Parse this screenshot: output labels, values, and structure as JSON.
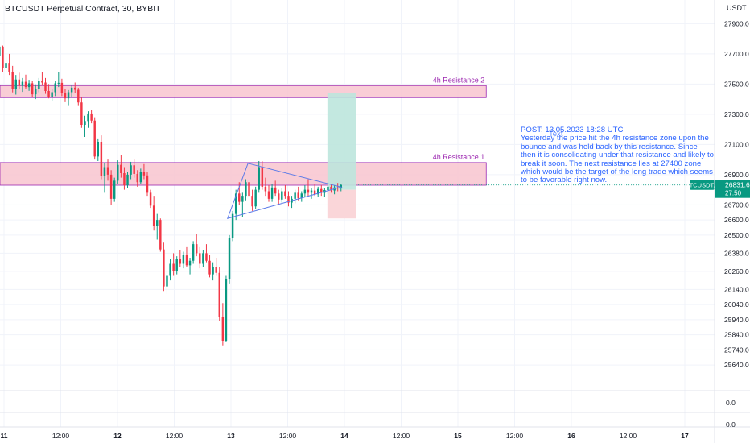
{
  "header": {
    "title": "BTCUSDT Perpetual Contract, 30, BYBIT",
    "currency": "USDT"
  },
  "chart_data": {
    "type": "candlestick",
    "title": "BTCUSDT Perpetual Contract, 30, BYBIT",
    "yunit": "USDT",
    "ylim": [
      25550,
      27950
    ],
    "y_ticks": [
      27900,
      27700,
      27500,
      27300,
      27100,
      26900,
      26700,
      26600,
      26500,
      26380,
      26260,
      26140,
      26040,
      25940,
      25840,
      25740,
      25640
    ],
    "y_tick_labels": [
      "27900.0",
      "27700.0",
      "27500.0",
      "27300.0",
      "27100.0",
      "26900.0",
      "26700.0",
      "26600.0",
      "26500.0",
      "26380.0",
      "26260.0",
      "26140.0",
      "26040.0",
      "25940.0",
      "25840.0",
      "25740.0",
      "25640.0"
    ],
    "x_ticks": [
      {
        "label": "11",
        "bold": true,
        "x": 0
      },
      {
        "label": "12:00",
        "bold": false,
        "x": 0.5
      },
      {
        "label": "12",
        "bold": true,
        "x": 1
      },
      {
        "label": "12:00",
        "bold": false,
        "x": 1.5
      },
      {
        "label": "13",
        "bold": true,
        "x": 2
      },
      {
        "label": "12:00",
        "bold": false,
        "x": 2.5
      },
      {
        "label": "14",
        "bold": true,
        "x": 3
      },
      {
        "label": "12:00",
        "bold": false,
        "x": 3.5
      },
      {
        "label": "15",
        "bold": true,
        "x": 4
      },
      {
        "label": "12:00",
        "bold": false,
        "x": 4.5
      },
      {
        "label": "16",
        "bold": true,
        "x": 5
      },
      {
        "label": "12:00",
        "bold": false,
        "x": 5.5
      },
      {
        "label": "17",
        "bold": true,
        "x": 6
      }
    ],
    "bull_color": "#089981",
    "bear_color": "#f23645",
    "last_price": {
      "value": 26831.6,
      "label": "26831.6",
      "symbol": "BTCUSDT.P",
      "countdown": "27:50"
    },
    "resistance_zones": [
      {
        "label": "4h Resistance 2",
        "low": 27410,
        "high": 27490,
        "x_end": 4.25,
        "color": "#f8c4cf",
        "border": "#9c27b0"
      },
      {
        "label": "4h Resistance 1",
        "low": 26830,
        "high": 26980,
        "x_end": 4.25,
        "color": "#f8c4cf",
        "border": "#9c27b0"
      }
    ],
    "triangle": {
      "points": [
        [
          2.15,
          26975
        ],
        [
          2.97,
          26818
        ],
        [
          1.97,
          26610
        ]
      ],
      "color": "#5b7ae8"
    },
    "long_position": {
      "x_start": 2.85,
      "x_end": 3.1,
      "entry": 26800,
      "target": 27440,
      "stop": 26610,
      "profit_color": "#bde6dd",
      "loss_color": "#fad1d5"
    },
    "lower_pane": {
      "ticks": [
        "0.0",
        "0.0"
      ]
    },
    "candles_ohlc": [
      [
        27685,
        27765,
        27660,
        27748
      ],
      [
        27748,
        27755,
        27580,
        27605
      ],
      [
        27605,
        27680,
        27575,
        27640
      ],
      [
        27640,
        27700,
        27560,
        27578
      ],
      [
        27578,
        27620,
        27445,
        27468
      ],
      [
        27468,
        27560,
        27430,
        27530
      ],
      [
        27530,
        27575,
        27470,
        27488
      ],
      [
        27488,
        27540,
        27448,
        27515
      ],
      [
        27515,
        27562,
        27470,
        27480
      ],
      [
        27480,
        27528,
        27455,
        27505
      ],
      [
        27505,
        27520,
        27412,
        27432
      ],
      [
        27432,
        27498,
        27400,
        27470
      ],
      [
        27470,
        27540,
        27446,
        27520
      ],
      [
        27520,
        27580,
        27490,
        27510
      ],
      [
        27510,
        27540,
        27435,
        27454
      ],
      [
        27454,
        27500,
        27405,
        27415
      ],
      [
        27415,
        27470,
        27390,
        27446
      ],
      [
        27446,
        27520,
        27420,
        27505
      ],
      [
        27505,
        27580,
        27480,
        27508
      ],
      [
        27508,
        27535,
        27420,
        27440
      ],
      [
        27440,
        27468,
        27380,
        27405
      ],
      [
        27405,
        27460,
        27360,
        27446
      ],
      [
        27446,
        27490,
        27410,
        27476
      ],
      [
        27476,
        27510,
        27440,
        27462
      ],
      [
        27462,
        27475,
        27360,
        27378
      ],
      [
        27378,
        27410,
        27210,
        27230
      ],
      [
        27230,
        27290,
        27150,
        27255
      ],
      [
        27255,
        27320,
        27210,
        27305
      ],
      [
        27305,
        27330,
        27240,
        27258
      ],
      [
        27258,
        27280,
        27000,
        27020
      ],
      [
        27020,
        27140,
        26990,
        27118
      ],
      [
        27118,
        27160,
        26870,
        26890
      ],
      [
        26890,
        26975,
        26780,
        26950
      ],
      [
        26950,
        27000,
        26860,
        26900
      ],
      [
        26900,
        26930,
        26700,
        26740
      ],
      [
        26740,
        26880,
        26720,
        26860
      ],
      [
        26860,
        26995,
        26840,
        26965
      ],
      [
        26965,
        27030,
        26880,
        26910
      ],
      [
        26910,
        26950,
        26800,
        26830
      ],
      [
        26830,
        26920,
        26810,
        26900
      ],
      [
        26900,
        26985,
        26870,
        26962
      ],
      [
        26962,
        27000,
        26880,
        26905
      ],
      [
        26905,
        26930,
        26820,
        26850
      ],
      [
        26850,
        26940,
        26840,
        26920
      ],
      [
        26920,
        26970,
        26870,
        26895
      ],
      [
        26895,
        26920,
        26760,
        26780
      ],
      [
        26780,
        26800,
        26680,
        26695
      ],
      [
        26695,
        26760,
        26530,
        26560
      ],
      [
        26560,
        26640,
        26470,
        26600
      ],
      [
        26600,
        26610,
        26390,
        26405
      ],
      [
        26405,
        26450,
        26130,
        26160
      ],
      [
        26160,
        26260,
        26110,
        26230
      ],
      [
        26230,
        26340,
        26200,
        26310
      ],
      [
        26310,
        26380,
        26230,
        26260
      ],
      [
        26260,
        26360,
        26240,
        26340
      ],
      [
        26340,
        26400,
        26290,
        26310
      ],
      [
        26310,
        26390,
        26280,
        26370
      ],
      [
        26370,
        26420,
        26290,
        26300
      ],
      [
        26300,
        26350,
        26240,
        26330
      ],
      [
        26330,
        26460,
        26310,
        26440
      ],
      [
        26440,
        26510,
        26360,
        26380
      ],
      [
        26380,
        26420,
        26280,
        26310
      ],
      [
        26310,
        26400,
        26290,
        26380
      ],
      [
        26380,
        26440,
        26320,
        26330
      ],
      [
        26330,
        26370,
        26220,
        26240
      ],
      [
        26240,
        26320,
        26200,
        26290
      ],
      [
        26290,
        26350,
        26230,
        26250
      ],
      [
        26250,
        26290,
        25930,
        25960
      ],
      [
        25960,
        26050,
        25770,
        25800
      ],
      [
        25800,
        26230,
        25790,
        26210
      ],
      [
        26210,
        26500,
        26180,
        26480
      ],
      [
        26480,
        26660,
        26460,
        26640
      ],
      [
        26640,
        26800,
        26600,
        26775
      ],
      [
        26775,
        26850,
        26700,
        26720
      ],
      [
        26720,
        26780,
        26620,
        26760
      ],
      [
        26760,
        26870,
        26730,
        26850
      ],
      [
        26850,
        26900,
        26730,
        26760
      ],
      [
        26760,
        26800,
        26660,
        26690
      ],
      [
        26690,
        26820,
        26670,
        26800
      ],
      [
        26800,
        26990,
        26780,
        26950
      ],
      [
        26950,
        26990,
        26800,
        26820
      ],
      [
        26820,
        26880,
        26760,
        26790
      ],
      [
        26790,
        26830,
        26720,
        26740
      ],
      [
        26740,
        26840,
        26720,
        26815
      ],
      [
        26815,
        26860,
        26760,
        26775
      ],
      [
        26775,
        26800,
        26700,
        26735
      ],
      [
        26735,
        26810,
        26715,
        26790
      ],
      [
        26790,
        26830,
        26740,
        26760
      ],
      [
        26760,
        26790,
        26690,
        26715
      ],
      [
        26715,
        26760,
        26680,
        26740
      ],
      [
        26740,
        26800,
        26710,
        26780
      ],
      [
        26780,
        26820,
        26730,
        26745
      ],
      [
        26745,
        26790,
        26720,
        26775
      ],
      [
        26775,
        26830,
        26750,
        26800
      ],
      [
        26800,
        26870,
        26760,
        26780
      ],
      [
        26780,
        26810,
        26740,
        26795
      ],
      [
        26795,
        26840,
        26760,
        26770
      ],
      [
        26770,
        26820,
        26750,
        26805
      ],
      [
        26805,
        26830,
        26760,
        26780
      ],
      [
        26780,
        26810,
        26750,
        26798
      ],
      [
        26798,
        26850,
        26770,
        26820
      ],
      [
        26820,
        26840,
        26780,
        26795
      ],
      [
        26795,
        26830,
        26770,
        26815
      ],
      [
        26815,
        26845,
        26790,
        26810
      ],
      [
        26810,
        26840,
        26790,
        26832
      ]
    ]
  },
  "note": {
    "text": "POST: 13.05.2023 18:28 UTC\nYesterday the price hit the 4h resistance zone upon the bounce and was held back by this resistance. Since then it is consolidating under that resistance and likely to break it soon. The next resistance lies at 27400 zone which would be the target of the long trade which seems to be favorable right now.",
    "overlay": "Text"
  }
}
